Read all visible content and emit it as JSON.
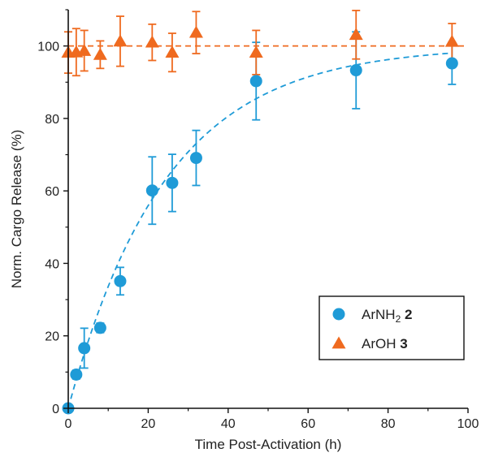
{
  "chart_data": {
    "type": "scatter",
    "xlabel": "Time Post-Activation (h)",
    "ylabel": "Norm. Cargo Release (%)",
    "xlim": [
      0,
      100
    ],
    "ylim": [
      0,
      110
    ],
    "xticks": [
      0,
      20,
      40,
      60,
      80,
      100
    ],
    "yticks": [
      0,
      20,
      40,
      60,
      80,
      100
    ],
    "grid": false,
    "legend_position": "bottom-right",
    "series": [
      {
        "name_main": "ArNH",
        "name_sub": "2",
        "name_bold": "2",
        "marker": "circle",
        "color": "#1f9bd7",
        "x": [
          0,
          2,
          4,
          8,
          13,
          21,
          26,
          32,
          47,
          72,
          96
        ],
        "y": [
          0,
          9.3,
          16.6,
          22.2,
          35.1,
          60.1,
          62.2,
          69.1,
          90.3,
          93.3,
          95.2
        ],
        "err": [
          0.5,
          1.2,
          5.5,
          1.3,
          3.8,
          9.3,
          7.9,
          7.6,
          10.7,
          10.6,
          5.8
        ],
        "fit": {
          "type": "exponential",
          "plateau": 100,
          "rate": 0.041,
          "color": "#1f9bd7",
          "style": "dashed"
        }
      },
      {
        "name_main": "ArOH",
        "name_sub": "",
        "name_bold": "3",
        "marker": "triangle",
        "color": "#ef6a1f",
        "x": [
          0,
          2,
          4,
          8,
          13,
          21,
          26,
          32,
          47,
          72,
          96
        ],
        "y": [
          98.2,
          98.3,
          98.7,
          97.6,
          101.3,
          101.0,
          98.2,
          103.7,
          98.2,
          103.1,
          101.2
        ],
        "err": [
          5.7,
          6.5,
          5.6,
          3.8,
          6.9,
          5.0,
          5.3,
          5.8,
          6.1,
          6.7,
          5.0
        ],
        "fit": {
          "type": "constant",
          "value": 100,
          "color": "#ef6a1f",
          "style": "dashed"
        }
      }
    ]
  }
}
